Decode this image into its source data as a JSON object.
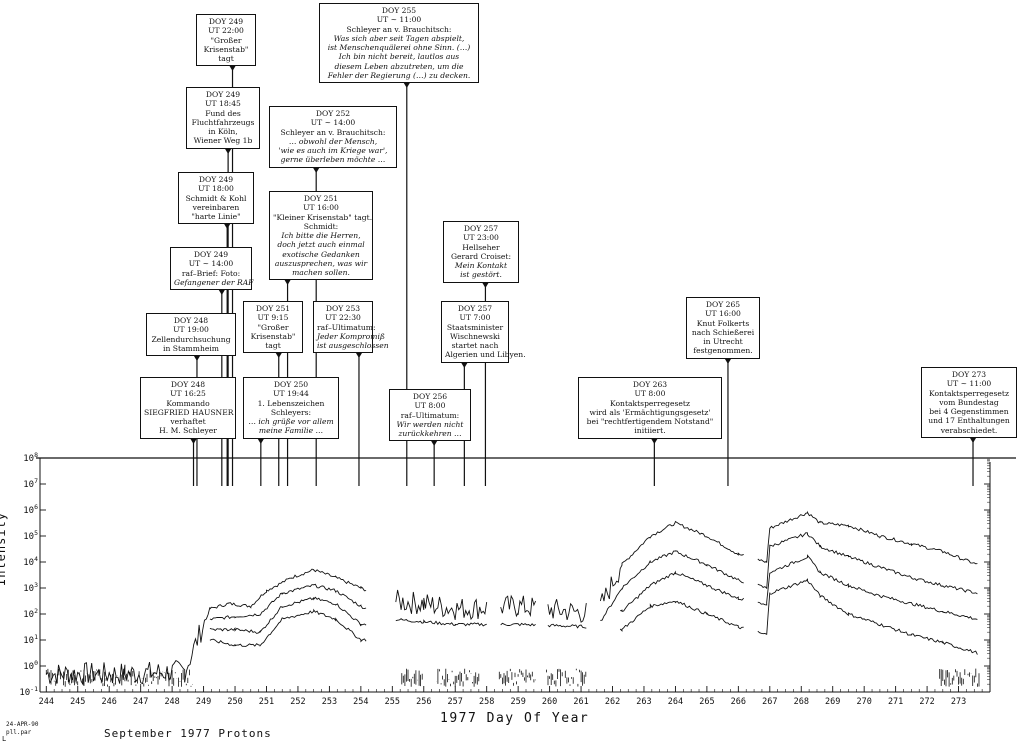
{
  "chart_data": {
    "type": "line",
    "title": "September 1977 Protons",
    "xlabel": "1977 Day Of Year",
    "ylabel": "Intensity",
    "xlim": [
      243.8,
      274.0
    ],
    "ylim_exponent": [
      -1,
      8
    ],
    "yscale": "log",
    "x_ticks": [
      "244",
      "245",
      "246",
      "247",
      "248",
      "249",
      "250",
      "251",
      "252",
      "253",
      "254",
      "255",
      "256",
      "257",
      "258",
      "259",
      "260",
      "261",
      "262",
      "263",
      "264",
      "265",
      "266",
      "267",
      "268",
      "269",
      "270",
      "271",
      "272",
      "273"
    ],
    "y_ticks": [
      "10-1",
      "100",
      "101",
      "102",
      "103",
      "104",
      "105",
      "106",
      "107",
      "108"
    ],
    "series": [
      {
        "x": [
          244.0,
          246.5,
          248.4,
          249.2,
          249.8,
          250.5,
          251.0,
          251.8,
          252.5,
          253.2,
          254.0,
          255.0,
          256.0,
          257.0,
          259.0,
          261.5,
          262.3,
          263.2,
          264.0,
          265.0,
          266.0,
          266.9,
          267.0,
          268.2,
          268.6,
          269.5,
          270.5,
          271.5,
          272.5,
          273.6
        ],
        "y": [
          -0.3,
          -0.3,
          -0.2,
          2.2,
          2.4,
          2.3,
          2.9,
          3.4,
          3.7,
          3.4,
          3.0,
          2.5,
          2.4,
          2.2,
          2.3,
          2.0,
          3.9,
          5.0,
          5.5,
          5.0,
          4.3,
          4.0,
          5.3,
          5.9,
          5.5,
          5.4,
          5.0,
          4.7,
          4.4,
          3.9
        ]
      },
      {
        "x": [
          249.2,
          250.0,
          250.8,
          251.5,
          252.5,
          253.2,
          254.0,
          255.0,
          256.0,
          257.0,
          259.0,
          261.5,
          262.3,
          263.2,
          264.0,
          265.0,
          266.0,
          266.9,
          267.0,
          268.2,
          268.6,
          269.5,
          270.5,
          271.5,
          272.5,
          273.6
        ],
        "y": [
          1.8,
          1.9,
          2.0,
          2.8,
          3.1,
          2.9,
          2.3,
          1.8,
          1.7,
          1.6,
          1.6,
          1.5,
          3.0,
          4.0,
          4.4,
          3.9,
          3.3,
          3.0,
          4.6,
          5.1,
          4.6,
          4.2,
          3.8,
          3.4,
          3.1,
          2.8
        ]
      },
      {
        "x": [
          249.2,
          250.0,
          250.8,
          251.5,
          252.5,
          253.2,
          254.0,
          262.3,
          263.2,
          264.0,
          265.0,
          266.0,
          266.9,
          267.0,
          268.2,
          268.6,
          269.5,
          270.5,
          271.5,
          272.5,
          273.6
        ],
        "y": [
          1.4,
          1.4,
          1.3,
          2.3,
          2.6,
          2.4,
          1.6,
          2.1,
          3.1,
          3.6,
          3.1,
          2.6,
          2.4,
          3.6,
          4.2,
          3.6,
          3.1,
          2.7,
          2.4,
          2.1,
          1.8
        ]
      },
      {
        "x": [
          249.2,
          250.0,
          250.8,
          251.5,
          252.5,
          253.2,
          254.0,
          262.3,
          263.2,
          264.0,
          265.0,
          266.0,
          266.9,
          267.0,
          268.2,
          268.6,
          269.5,
          270.5,
          271.5,
          272.5,
          273.6
        ],
        "y": [
          1.0,
          0.8,
          0.8,
          1.8,
          2.1,
          1.8,
          1.0,
          1.4,
          2.3,
          2.5,
          2.0,
          1.5,
          1.2,
          2.8,
          3.3,
          2.7,
          2.0,
          1.6,
          1.2,
          0.9,
          0.5
        ]
      }
    ],
    "events": [
      {
        "doy": 248.68,
        "lines": [
          "DOY 248",
          "UT 16:25",
          "Kommando",
          "SIEGFRIED HAUSNER",
          "verhaftet",
          "H. M. Schleyer"
        ],
        "italic": []
      },
      {
        "doy": 248.79,
        "lines": [
          "DOY 248",
          "UT 19:00",
          "Zellendurchsuchung",
          "in Stammheim"
        ],
        "italic": []
      },
      {
        "doy": 249.58,
        "lines": [
          "DOY 249",
          "UT ~ 14:00",
          "raf–Brief: Foto:",
          "Gefangener der RAF"
        ],
        "italic": [
          3
        ]
      },
      {
        "doy": 249.75,
        "lines": [
          "DOY 249",
          "UT 18:00",
          "Schmidt & Kohl",
          "vereinbaren",
          "\"harte Linie\""
        ],
        "italic": []
      },
      {
        "doy": 249.78,
        "lines": [
          "DOY 249",
          "UT 18:45",
          "Fund des",
          "Fluchtfahrzeugs",
          "in Köln,",
          "Wiener Weg 1b"
        ],
        "italic": []
      },
      {
        "doy": 249.92,
        "lines": [
          "DOY 249",
          "UT 22:00",
          "\"Großer",
          "Krisenstab\"",
          "tagt"
        ],
        "italic": []
      },
      {
        "doy": 250.82,
        "lines": [
          "DOY 250",
          "UT 19:44",
          "1. Lebenszeichen",
          "Schleyers:",
          "… ich grüße vor allem",
          "meine Familie …"
        ],
        "italic": [
          4,
          5
        ]
      },
      {
        "doy": 251.39,
        "lines": [
          "DOY 251",
          "UT 9:15",
          "\"Großer",
          "Krisenstab\"",
          "tagt"
        ],
        "italic": []
      },
      {
        "doy": 251.67,
        "lines": [
          "DOY 251",
          "UT 16:00",
          "\"Kleiner Krisenstab\" tagt.",
          "Schmidt:",
          "Ich bitte die Herren,",
          "doch jetzt auch einmal",
          "exotische Gedanken",
          "auszusprechen, was wir",
          "machen sollen."
        ],
        "italic": [
          4,
          5,
          6,
          7,
          8
        ]
      },
      {
        "doy": 252.58,
        "lines": [
          "DOY 252",
          "UT ~ 14:00",
          "Schleyer an v. Brauchitsch:",
          "… obwohl der Mensch,",
          "'wie es auch im Kriege war',",
          "gerne überleben möchte …"
        ],
        "italic": [
          3,
          4,
          5
        ]
      },
      {
        "doy": 253.94,
        "lines": [
          "DOY 253",
          "UT 22:30",
          "raf–Ultimatum:",
          "Jeder Kompromiß",
          "ist ausgeschlossen"
        ],
        "italic": [
          3,
          4
        ]
      },
      {
        "doy": 255.46,
        "lines": [
          "DOY 255",
          "UT ~ 11:00",
          "Schleyer an v. Brauchitsch:",
          "Was sich aber seit Tagen abspielt,",
          "ist Menschenquälerei ohne Sinn. (…)",
          "Ich bin nicht bereit, lautlos aus",
          "diesem Leben abzutreten, um die",
          "Fehler der Regierung (…) zu decken."
        ],
        "italic": [
          3,
          4,
          5,
          6,
          7
        ]
      },
      {
        "doy": 256.33,
        "lines": [
          "DOY 256",
          "UT 8:00",
          "raf–Ultimatum:",
          "Wir werden nicht",
          "zurückkehren …"
        ],
        "italic": [
          3,
          4
        ]
      },
      {
        "doy": 257.29,
        "lines": [
          "DOY 257",
          "UT 7:00",
          "Staatsminister",
          "Wischnewski",
          "startet nach",
          "Algerien und Libyen."
        ],
        "italic": []
      },
      {
        "doy": 257.96,
        "lines": [
          "DOY 257",
          "UT 23:00",
          "Hellseher",
          "Gerard Croiset:",
          "Mein Kontakt",
          "ist gestört."
        ],
        "italic": [
          4,
          5
        ]
      },
      {
        "doy": 263.33,
        "lines": [
          "DOY 263",
          "UT 8:00",
          "Kontaktsperregesetz",
          "wird als 'Ermächtigungsgesetz'",
          "bei \"rechtfertigendem Notstand\"",
          "initiiert."
        ],
        "italic": []
      },
      {
        "doy": 265.67,
        "lines": [
          "DOY 265",
          "UT 16:00",
          "Knut Folkerts",
          "nach Schießerei",
          "in Utrecht",
          "festgenommen."
        ],
        "italic": []
      },
      {
        "doy": 273.46,
        "lines": [
          "DOY 273",
          "UT ~ 11:00",
          "Kontaktsperregesetz",
          "vom Bundestag",
          "bei 4 Gegenstimmen",
          "und 17 Enthaltungen",
          "verabschiedet."
        ],
        "italic": []
      }
    ]
  },
  "footer": {
    "date": "24-APR-90",
    "file": "pll.par",
    "corner_mark": "L"
  }
}
